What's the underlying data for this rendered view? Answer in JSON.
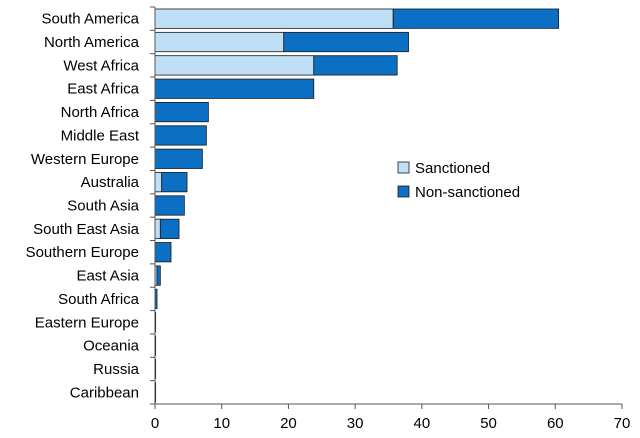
{
  "chart_data": {
    "type": "bar",
    "orientation": "horizontal",
    "stacked": true,
    "categories": [
      "South America",
      "North America",
      "West Africa",
      "East Africa",
      "North Africa",
      "Middle East",
      "Western Europe",
      "Australia",
      "South Asia",
      "South East Asia",
      "Southern Europe",
      "East Asia",
      "South Africa",
      "Eastern Europe",
      "Oceania",
      "Russia",
      "Caribbean"
    ],
    "series": [
      {
        "name": "Sanctioned",
        "color": "#bfdff7",
        "values": [
          35.7,
          19.3,
          23.8,
          0,
          0,
          0,
          0,
          1.0,
          0,
          0.8,
          0,
          0.3,
          0,
          0,
          0,
          0,
          0
        ]
      },
      {
        "name": "Non-sanctioned",
        "color": "#0b6fc4",
        "values": [
          24.8,
          18.7,
          12.5,
          23.8,
          8.0,
          7.7,
          7.1,
          3.8,
          4.4,
          2.8,
          2.4,
          0.5,
          0.3,
          0.1,
          0.1,
          0.1,
          0.1
        ]
      }
    ],
    "xlim": [
      0,
      70
    ],
    "xticks": [
      0,
      10,
      20,
      30,
      40,
      50,
      60,
      70
    ],
    "grid": false,
    "legend_position": "right-middle"
  }
}
